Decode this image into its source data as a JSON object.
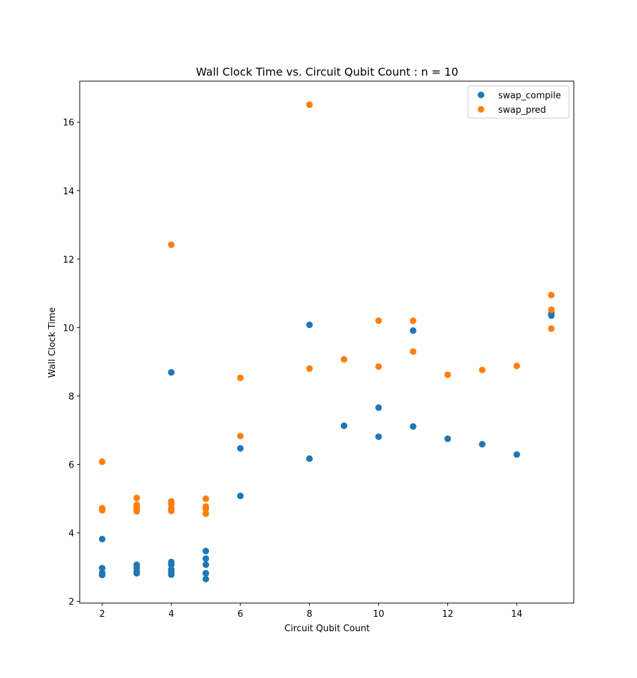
{
  "chart_data": {
    "type": "scatter",
    "title": "Wall Clock Time vs. Circuit Qubit Count : n = 10",
    "xlabel": "Circuit Qubit Count",
    "ylabel": "Wall Clock Time",
    "xlim": [
      1.35,
      15.65
    ],
    "ylim": [
      1.95,
      17.2
    ],
    "xticks": [
      2,
      4,
      6,
      8,
      10,
      12,
      14
    ],
    "yticks": [
      2,
      4,
      6,
      8,
      10,
      12,
      14,
      16
    ],
    "grid": false,
    "legend_position": "top-right",
    "series": [
      {
        "name": "swap_compile",
        "color": "#1f77b4",
        "points": [
          [
            2,
            3.82
          ],
          [
            2,
            2.97
          ],
          [
            2,
            2.83
          ],
          [
            2,
            2.77
          ],
          [
            3,
            3.07
          ],
          [
            3,
            2.98
          ],
          [
            3,
            2.88
          ],
          [
            3,
            2.82
          ],
          [
            4,
            8.69
          ],
          [
            4,
            3.15
          ],
          [
            4,
            3.07
          ],
          [
            4,
            2.93
          ],
          [
            4,
            2.86
          ],
          [
            4,
            2.78
          ],
          [
            5,
            3.47
          ],
          [
            5,
            3.25
          ],
          [
            5,
            3.07
          ],
          [
            5,
            2.82
          ],
          [
            5,
            2.65
          ],
          [
            6,
            6.47
          ],
          [
            6,
            5.08
          ],
          [
            8,
            10.08
          ],
          [
            8,
            6.17
          ],
          [
            9,
            7.13
          ],
          [
            10,
            7.66
          ],
          [
            10,
            6.81
          ],
          [
            11,
            9.91
          ],
          [
            11,
            7.11
          ],
          [
            12,
            6.75
          ],
          [
            13,
            6.59
          ],
          [
            14,
            6.29
          ],
          [
            15,
            10.41
          ],
          [
            15,
            10.35
          ]
        ]
      },
      {
        "name": "swap_pred",
        "color": "#ff7f0e",
        "points": [
          [
            2,
            6.08
          ],
          [
            2,
            4.72
          ],
          [
            2,
            4.66
          ],
          [
            3,
            5.02
          ],
          [
            3,
            4.82
          ],
          [
            3,
            4.74
          ],
          [
            3,
            4.67
          ],
          [
            3,
            4.63
          ],
          [
            4,
            12.42
          ],
          [
            4,
            4.92
          ],
          [
            4,
            4.84
          ],
          [
            4,
            4.72
          ],
          [
            4,
            4.64
          ],
          [
            5,
            5.0
          ],
          [
            5,
            4.77
          ],
          [
            5,
            4.7
          ],
          [
            5,
            4.56
          ],
          [
            6,
            8.53
          ],
          [
            6,
            6.83
          ],
          [
            8,
            16.51
          ],
          [
            8,
            8.8
          ],
          [
            9,
            9.07
          ],
          [
            10,
            10.2
          ],
          [
            10,
            8.86
          ],
          [
            11,
            10.2
          ],
          [
            11,
            9.3
          ],
          [
            12,
            8.62
          ],
          [
            13,
            8.76
          ],
          [
            14,
            8.88
          ],
          [
            15,
            10.95
          ],
          [
            15,
            10.52
          ],
          [
            15,
            9.97
          ]
        ]
      }
    ]
  }
}
